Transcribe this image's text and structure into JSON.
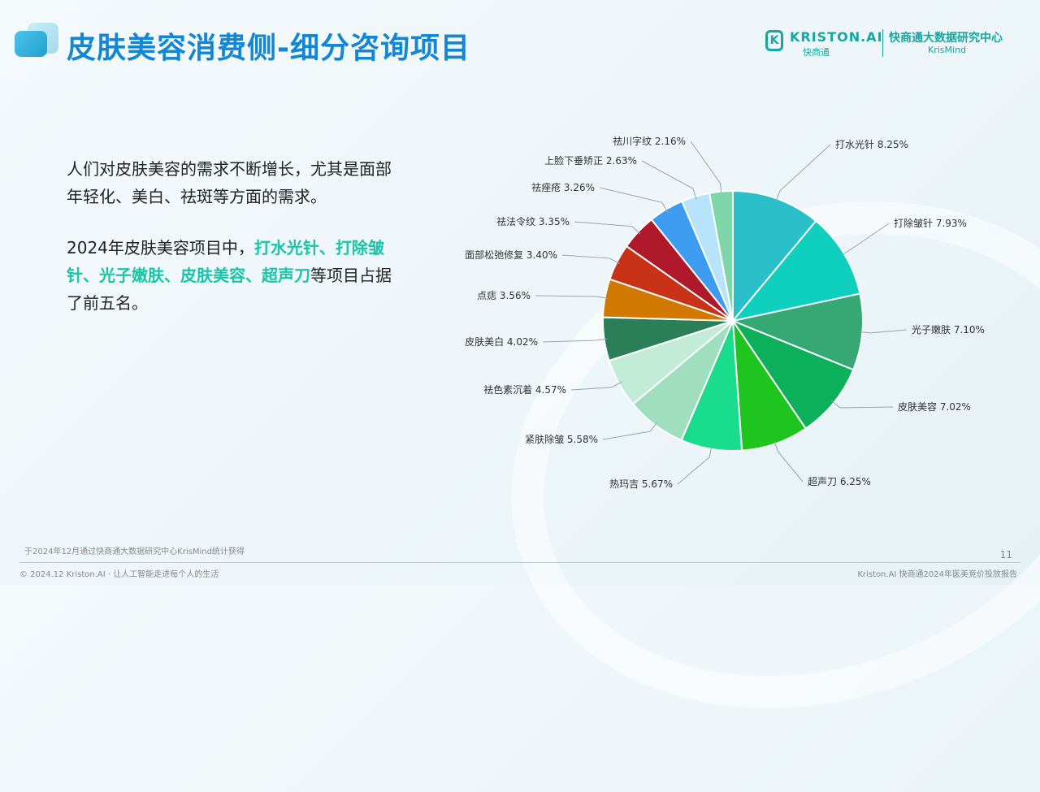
{
  "header": {
    "title": "皮肤美容消费侧-细分咨询项目",
    "brand_logo_text": "KRISTON.AI",
    "brand_logo_sub": "快商通",
    "org_name": "快商通大数据研究中心",
    "org_en": "KrisMind"
  },
  "body": {
    "para1": "人们对皮肤美容的需求不断增长，尤其是面部年轻化、美白、祛斑等方面的需求。",
    "para2_prefix": "2024年皮肤美容项目中，",
    "para2_highlight": "打水光针、打除皱针、光子嫩肤、皮肤美容、超声刀",
    "para2_suffix": "等项目占据了前五名。"
  },
  "chart_data": {
    "type": "pie",
    "title": "",
    "slices": [
      {
        "label": "打水光针",
        "value": 8.25,
        "display": "8.25%",
        "color": "#2bbfc9"
      },
      {
        "label": "打除皱针",
        "value": 7.93,
        "display": "7.93%",
        "color": "#0fcfbf"
      },
      {
        "label": "光子嫩肤",
        "value": 7.1,
        "display": "7.10%",
        "color": "#35a873"
      },
      {
        "label": "皮肤美容",
        "value": 7.02,
        "display": "7.02%",
        "color": "#0db05a"
      },
      {
        "label": "超声刀",
        "value": 6.25,
        "display": "6.25%",
        "color": "#1fc41f"
      },
      {
        "label": "热玛吉",
        "value": 5.67,
        "display": "5.67%",
        "color": "#19dc8c"
      },
      {
        "label": "紧肤除皱",
        "value": 5.58,
        "display": "5.58%",
        "color": "#9fdfc0"
      },
      {
        "label": "祛色素沉着",
        "value": 4.57,
        "display": "4.57%",
        "color": "#c2ecd8"
      },
      {
        "label": "皮肤美白",
        "value": 4.02,
        "display": "4.02%",
        "color": "#2a7f58"
      },
      {
        "label": "点痣",
        "value": 3.56,
        "display": "3.56%",
        "color": "#d17800"
      },
      {
        "label": "面部松弛修复",
        "value": 3.4,
        "display": "3.40%",
        "color": "#c83318"
      },
      {
        "label": "祛法令纹",
        "value": 3.35,
        "display": "3.35%",
        "color": "#b0182c"
      },
      {
        "label": "祛痤疮",
        "value": 3.26,
        "display": "3.26%",
        "color": "#3d9cf0"
      },
      {
        "label": "上脸下垂矫正",
        "value": 2.63,
        "display": "2.63%",
        "color": "#b8e4fb"
      },
      {
        "label": "祛川字纹",
        "value": 2.16,
        "display": "2.16%",
        "color": "#7dd7a8"
      }
    ]
  },
  "footer": {
    "source": "于2024年12月通过快商通大数据研究中心KrisMind统计获得",
    "copyright": "© 2024.12 Kriston.AI · 让人工智能走进每个人的生活",
    "report": "Kriston.AI 快商通2024年医美竞价投放报告",
    "page_number": "11"
  }
}
